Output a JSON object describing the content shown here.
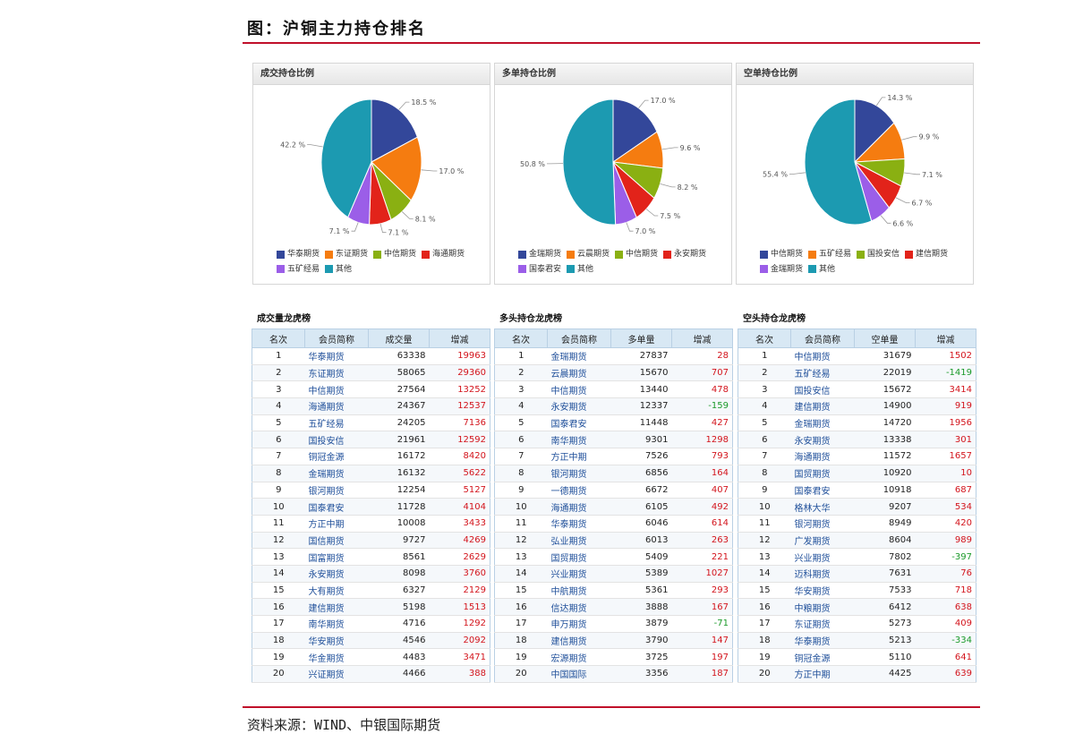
{
  "header": {
    "title": "图：沪铜主力持仓排名"
  },
  "footer": {
    "source": "资料来源：WIND、中银国际期货"
  },
  "colors": {
    "accent": "#c0102a",
    "pos": "#d3141c",
    "neg": "#1b9a2a",
    "link": "#1f4f9a"
  },
  "chart_data": [
    {
      "type": "pie",
      "title": "成交持仓比例",
      "slices": [
        {
          "label": "华泰期货",
          "value": 18.5,
          "color": "#33479a"
        },
        {
          "label": "东证期货",
          "value": 17.0,
          "color": "#f57c10"
        },
        {
          "label": "中信期货",
          "value": 8.1,
          "color": "#8ab012"
        },
        {
          "label": "海通期货",
          "value": 7.1,
          "color": "#e2231a"
        },
        {
          "label": "五矿经易",
          "value": 7.1,
          "color": "#9b5ee8"
        },
        {
          "label": "其他",
          "value": 42.2,
          "color": "#1c9ab1"
        }
      ]
    },
    {
      "type": "pie",
      "title": "多单持仓比例",
      "slices": [
        {
          "label": "金瑞期货",
          "value": 17.0,
          "color": "#33479a"
        },
        {
          "label": "云晨期货",
          "value": 9.6,
          "color": "#f57c10"
        },
        {
          "label": "中信期货",
          "value": 8.2,
          "color": "#8ab012"
        },
        {
          "label": "永安期货",
          "value": 7.5,
          "color": "#e2231a"
        },
        {
          "label": "国泰君安",
          "value": 7.0,
          "color": "#9b5ee8"
        },
        {
          "label": "其他",
          "value": 50.8,
          "color": "#1c9ab1"
        }
      ]
    },
    {
      "type": "pie",
      "title": "空单持仓比例",
      "slices": [
        {
          "label": "中信期货",
          "value": 14.3,
          "color": "#33479a"
        },
        {
          "label": "五矿经易",
          "value": 9.9,
          "color": "#f57c10"
        },
        {
          "label": "国投安信",
          "value": 7.1,
          "color": "#8ab012"
        },
        {
          "label": "建信期货",
          "value": 6.7,
          "color": "#e2231a"
        },
        {
          "label": "金瑞期货",
          "value": 6.6,
          "color": "#9b5ee8"
        },
        {
          "label": "其他",
          "value": 55.4,
          "color": "#1c9ab1"
        }
      ]
    }
  ],
  "tables": [
    {
      "title": "成交量龙虎榜",
      "columns": [
        "名次",
        "会员简称",
        "成交量",
        "增减"
      ],
      "rows": [
        [
          "1",
          "华泰期货",
          "63338",
          "19963"
        ],
        [
          "2",
          "东证期货",
          "58065",
          "29360"
        ],
        [
          "3",
          "中信期货",
          "27564",
          "13252"
        ],
        [
          "4",
          "海通期货",
          "24367",
          "12537"
        ],
        [
          "5",
          "五矿经易",
          "24205",
          "7136"
        ],
        [
          "6",
          "国投安信",
          "21961",
          "12592"
        ],
        [
          "7",
          "铜冠金源",
          "16172",
          "8420"
        ],
        [
          "8",
          "金瑞期货",
          "16132",
          "5622"
        ],
        [
          "9",
          "银河期货",
          "12254",
          "5127"
        ],
        [
          "10",
          "国泰君安",
          "11728",
          "4104"
        ],
        [
          "11",
          "方正中期",
          "10008",
          "3433"
        ],
        [
          "12",
          "国信期货",
          "9727",
          "4269"
        ],
        [
          "13",
          "国富期货",
          "8561",
          "2629"
        ],
        [
          "14",
          "永安期货",
          "8098",
          "3760"
        ],
        [
          "15",
          "大有期货",
          "6327",
          "2129"
        ],
        [
          "16",
          "建信期货",
          "5198",
          "1513"
        ],
        [
          "17",
          "南华期货",
          "4716",
          "1292"
        ],
        [
          "18",
          "华安期货",
          "4546",
          "2092"
        ],
        [
          "19",
          "华金期货",
          "4483",
          "3471"
        ],
        [
          "20",
          "兴证期货",
          "4466",
          "388"
        ]
      ]
    },
    {
      "title": "多头持仓龙虎榜",
      "columns": [
        "名次",
        "会员简称",
        "多单量",
        "增减"
      ],
      "rows": [
        [
          "1",
          "金瑞期货",
          "27837",
          "28"
        ],
        [
          "2",
          "云晨期货",
          "15670",
          "707"
        ],
        [
          "3",
          "中信期货",
          "13440",
          "478"
        ],
        [
          "4",
          "永安期货",
          "12337",
          "-159"
        ],
        [
          "5",
          "国泰君安",
          "11448",
          "427"
        ],
        [
          "6",
          "南华期货",
          "9301",
          "1298"
        ],
        [
          "7",
          "方正中期",
          "7526",
          "793"
        ],
        [
          "8",
          "银河期货",
          "6856",
          "164"
        ],
        [
          "9",
          "一德期货",
          "6672",
          "407"
        ],
        [
          "10",
          "海通期货",
          "6105",
          "492"
        ],
        [
          "11",
          "华泰期货",
          "6046",
          "614"
        ],
        [
          "12",
          "弘业期货",
          "6013",
          "263"
        ],
        [
          "13",
          "国贸期货",
          "5409",
          "221"
        ],
        [
          "14",
          "兴业期货",
          "5389",
          "1027"
        ],
        [
          "15",
          "中航期货",
          "5361",
          "293"
        ],
        [
          "16",
          "信达期货",
          "3888",
          "167"
        ],
        [
          "17",
          "申万期货",
          "3879",
          "-71"
        ],
        [
          "18",
          "建信期货",
          "3790",
          "147"
        ],
        [
          "19",
          "宏源期货",
          "3725",
          "197"
        ],
        [
          "20",
          "中国国际",
          "3356",
          "187"
        ]
      ]
    },
    {
      "title": "空头持仓龙虎榜",
      "columns": [
        "名次",
        "会员简称",
        "空单量",
        "增减"
      ],
      "rows": [
        [
          "1",
          "中信期货",
          "31679",
          "1502"
        ],
        [
          "2",
          "五矿经易",
          "22019",
          "-1419"
        ],
        [
          "3",
          "国投安信",
          "15672",
          "3414"
        ],
        [
          "4",
          "建信期货",
          "14900",
          "919"
        ],
        [
          "5",
          "金瑞期货",
          "14720",
          "1956"
        ],
        [
          "6",
          "永安期货",
          "13338",
          "301"
        ],
        [
          "7",
          "海通期货",
          "11572",
          "1657"
        ],
        [
          "8",
          "国贸期货",
          "10920",
          "10"
        ],
        [
          "9",
          "国泰君安",
          "10918",
          "687"
        ],
        [
          "10",
          "格林大华",
          "9207",
          "534"
        ],
        [
          "11",
          "银河期货",
          "8949",
          "420"
        ],
        [
          "12",
          "广发期货",
          "8604",
          "989"
        ],
        [
          "13",
          "兴业期货",
          "7802",
          "-397"
        ],
        [
          "14",
          "迈科期货",
          "7631",
          "76"
        ],
        [
          "15",
          "华安期货",
          "7533",
          "718"
        ],
        [
          "16",
          "中粮期货",
          "6412",
          "638"
        ],
        [
          "17",
          "东证期货",
          "5273",
          "409"
        ],
        [
          "18",
          "华泰期货",
          "5213",
          "-334"
        ],
        [
          "19",
          "铜冠金源",
          "5110",
          "641"
        ],
        [
          "20",
          "方正中期",
          "4425",
          "639"
        ]
      ]
    }
  ]
}
